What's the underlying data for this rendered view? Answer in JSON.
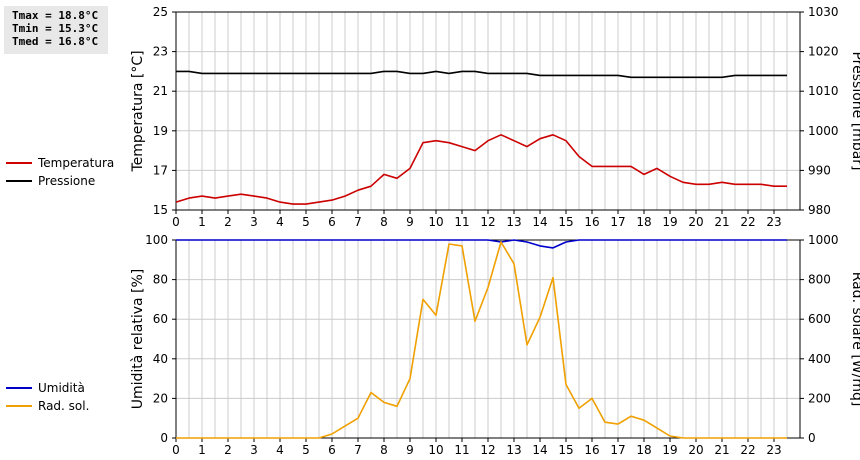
{
  "stats": {
    "tmax": "Tmax = 18.8°C",
    "tmin": "Tmin = 15.3°C",
    "tmed": "Tmed = 16.8°C"
  },
  "colors": {
    "temperature": "#cc0000",
    "pressure": "#000000",
    "humidity": "#0000cc",
    "radiation": "#f0a000",
    "grid": "#cccccc"
  },
  "chart_data": [
    {
      "type": "line",
      "legend_placement": "left",
      "grid": true,
      "x_ticks": [
        0,
        1,
        2,
        3,
        4,
        5,
        6,
        7,
        8,
        9,
        10,
        11,
        12,
        13,
        14,
        15,
        16,
        17,
        18,
        19,
        20,
        21,
        22,
        23
      ],
      "xlim": [
        0,
        24
      ],
      "y_left": {
        "label": "Temperatura [°C]",
        "lim": [
          15,
          25
        ],
        "ticks": [
          15,
          17,
          19,
          21,
          23,
          25
        ]
      },
      "y_right": {
        "label": "Pressione [mbar]",
        "lim": [
          980,
          1030
        ],
        "ticks": [
          980,
          990,
          1000,
          1010,
          1020,
          1030
        ]
      },
      "series": [
        {
          "name": "Temperatura",
          "axis": "left",
          "color_key": "temperature",
          "x": [
            0,
            0.5,
            1,
            1.5,
            2,
            2.5,
            3,
            3.5,
            4,
            4.5,
            5,
            5.5,
            6,
            6.5,
            7,
            7.5,
            8,
            8.5,
            9,
            9.5,
            10,
            10.5,
            11,
            11.5,
            12,
            12.5,
            13,
            13.5,
            14,
            14.5,
            15,
            15.5,
            16,
            16.5,
            17,
            17.5,
            18,
            18.5,
            19,
            19.5,
            20,
            20.5,
            21,
            21.5,
            22,
            22.5,
            23,
            23.5
          ],
          "values": [
            15.4,
            15.6,
            15.7,
            15.6,
            15.7,
            15.8,
            15.7,
            15.6,
            15.4,
            15.3,
            15.3,
            15.4,
            15.5,
            15.7,
            16.0,
            16.2,
            16.8,
            16.6,
            17.1,
            18.4,
            18.5,
            18.4,
            18.2,
            18.0,
            18.5,
            18.8,
            18.5,
            18.2,
            18.6,
            18.8,
            18.5,
            17.7,
            17.2,
            17.2,
            17.2,
            17.2,
            16.8,
            17.1,
            16.7,
            16.4,
            16.3,
            16.3,
            16.4,
            16.3,
            16.3,
            16.3,
            16.2,
            16.2
          ]
        },
        {
          "name": "Pressione",
          "axis": "right",
          "color_key": "pressure",
          "x": [
            0,
            0.5,
            1,
            1.5,
            2,
            2.5,
            3,
            3.5,
            4,
            4.5,
            5,
            5.5,
            6,
            6.5,
            7,
            7.5,
            8,
            8.5,
            9,
            9.5,
            10,
            10.5,
            11,
            11.5,
            12,
            12.5,
            13,
            13.5,
            14,
            14.5,
            15,
            15.5,
            16,
            16.5,
            17,
            17.5,
            18,
            18.5,
            19,
            19.5,
            20,
            20.5,
            21,
            21.5,
            22,
            22.5,
            23,
            23.5
          ],
          "values": [
            1015,
            1015,
            1014.5,
            1014.5,
            1014.5,
            1014.5,
            1014.5,
            1014.5,
            1014.5,
            1014.5,
            1014.5,
            1014.5,
            1014.5,
            1014.5,
            1014.5,
            1014.5,
            1015,
            1015,
            1014.5,
            1014.5,
            1015,
            1014.5,
            1015,
            1015,
            1014.5,
            1014.5,
            1014.5,
            1014.5,
            1014,
            1014,
            1014,
            1014,
            1014,
            1014,
            1014,
            1013.5,
            1013.5,
            1013.5,
            1013.5,
            1013.5,
            1013.5,
            1013.5,
            1013.5,
            1014,
            1014,
            1014,
            1014,
            1014
          ]
        }
      ]
    },
    {
      "type": "line",
      "legend_placement": "left",
      "grid": true,
      "x_ticks": [
        0,
        1,
        2,
        3,
        4,
        5,
        6,
        7,
        8,
        9,
        10,
        11,
        12,
        13,
        14,
        15,
        16,
        17,
        18,
        19,
        20,
        21,
        22,
        23
      ],
      "xlim": [
        0,
        24
      ],
      "y_left": {
        "label": "Umidità relativa [%]",
        "lim": [
          0,
          100
        ],
        "ticks": [
          0,
          20,
          40,
          60,
          80,
          100
        ]
      },
      "y_right": {
        "label": "Rad. solare [W/mq]",
        "lim": [
          0,
          1000
        ],
        "ticks": [
          0,
          200,
          400,
          600,
          800,
          1000
        ]
      },
      "series": [
        {
          "name": "Umidità",
          "axis": "left",
          "color_key": "humidity",
          "x": [
            0,
            0.5,
            1,
            1.5,
            2,
            2.5,
            3,
            3.5,
            4,
            4.5,
            5,
            5.5,
            6,
            6.5,
            7,
            7.5,
            8,
            8.5,
            9,
            9.5,
            10,
            10.5,
            11,
            11.5,
            12,
            12.5,
            13,
            13.5,
            14,
            14.5,
            15,
            15.5,
            16,
            16.5,
            17,
            17.5,
            18,
            18.5,
            19,
            19.5,
            20,
            20.5,
            21,
            21.5,
            22,
            22.5,
            23,
            23.5
          ],
          "values": [
            100,
            100,
            100,
            100,
            100,
            100,
            100,
            100,
            100,
            100,
            100,
            100,
            100,
            100,
            100,
            100,
            100,
            100,
            100,
            100,
            100,
            100,
            100,
            100,
            100,
            99,
            100,
            99,
            97,
            96,
            99,
            100,
            100,
            100,
            100,
            100,
            100,
            100,
            100,
            100,
            100,
            100,
            100,
            100,
            100,
            100,
            100,
            100
          ]
        },
        {
          "name": "Rad. sol.",
          "axis": "right",
          "color_key": "radiation",
          "x": [
            0,
            0.5,
            1,
            1.5,
            2,
            2.5,
            3,
            3.5,
            4,
            4.5,
            5,
            5.5,
            6,
            6.5,
            7,
            7.5,
            8,
            8.5,
            9,
            9.5,
            10,
            10.5,
            11,
            11.5,
            12,
            12.5,
            13,
            13.5,
            14,
            14.5,
            15,
            15.5,
            16,
            16.5,
            17,
            17.5,
            18,
            18.5,
            19,
            19.5,
            20,
            20.5,
            21,
            21.5,
            22,
            22.5,
            23,
            23.5
          ],
          "values": [
            0,
            0,
            0,
            0,
            0,
            0,
            0,
            0,
            0,
            0,
            0,
            0,
            20,
            60,
            100,
            230,
            180,
            160,
            300,
            700,
            620,
            980,
            970,
            590,
            760,
            990,
            880,
            470,
            610,
            810,
            270,
            150,
            200,
            80,
            70,
            110,
            90,
            50,
            10,
            0,
            0,
            0,
            0,
            0,
            0,
            0,
            0,
            0
          ]
        }
      ]
    }
  ]
}
